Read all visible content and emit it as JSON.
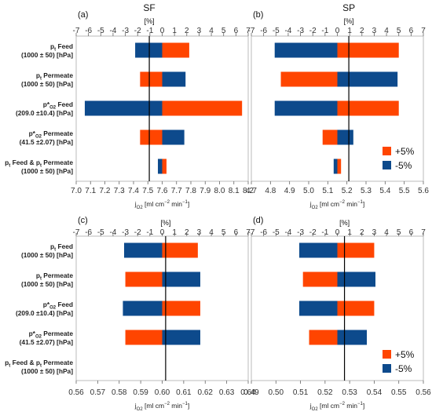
{
  "figure": {
    "legend": [
      {
        "label": "+5%",
        "color": "#ff4500"
      },
      {
        "label": "-5%",
        "color": "#0d4a8c"
      }
    ]
  },
  "chart_data": [
    {
      "type": "bar",
      "orientation": "horizontal",
      "panel_label": "(a)",
      "title": "SF",
      "top_axis": {
        "label": "[%]",
        "range": [
          -7,
          7
        ],
        "ticks": [
          -7,
          -6,
          -5,
          -4,
          -3,
          -2,
          -1,
          0,
          1,
          2,
          3,
          4,
          5,
          6,
          7
        ]
      },
      "bottom_axis": {
        "label": "j_O2 [ml cm^-2 min^-1]",
        "range": [
          7.0,
          8.2
        ],
        "ticks": [
          "7.0",
          "7.1",
          "7.2",
          "7.3",
          "7.4",
          "7.5",
          "7.6",
          "7.7",
          "7.8",
          "7.9",
          "8.0",
          "8.1",
          "8.2"
        ]
      },
      "baseline": 7.51,
      "categories": [
        "pt Feed (1000 ± 50) [hPa]",
        "pt Permeate (1000 ± 50) [hPa]",
        "p*O2 Feed (209.0 ±10.4) [hPa]",
        "p*O2 Permeate (41.5 ±2.07) [hPa]",
        "pt Feed & pt Permeate (1000 ± 50) [hPa]"
      ],
      "series": [
        {
          "name": "+5%",
          "values": [
            2.2,
            -1.8,
            6.5,
            -1.8,
            0.35
          ]
        },
        {
          "name": "-5%",
          "values": [
            -2.2,
            1.9,
            -6.3,
            1.8,
            -0.35
          ]
        }
      ]
    },
    {
      "type": "bar",
      "orientation": "horizontal",
      "panel_label": "(b)",
      "title": "SP",
      "top_axis": {
        "label": "[%]",
        "range": [
          -7,
          7
        ],
        "ticks": [
          -7,
          -6,
          -5,
          -4,
          -3,
          -2,
          -1,
          0,
          1,
          2,
          3,
          4,
          5,
          6,
          7
        ]
      },
      "bottom_axis": {
        "label": "j_O2 [ml cm^-2 min^-1]",
        "range": [
          4.7,
          5.6
        ],
        "ticks": [
          "4.7",
          "4.8",
          "4.9",
          "5.0",
          "5.1",
          "5.2",
          "5.3",
          "5.4",
          "5.5",
          "5.6"
        ]
      },
      "baseline": 5.21,
      "categories": [
        "pt Feed (1000 ± 50) [hPa]",
        "pt Permeate (1000 ± 50) [hPa]",
        "p*O2 Feed (209.0 ±10.4) [hPa]",
        "p*O2 Permeate (41.5 ±2.07) [hPa]",
        "pt Feed & pt Permeate (1000 ± 50) [hPa]"
      ],
      "series": [
        {
          "name": "+5%",
          "values": [
            5.0,
            -4.6,
            5.0,
            -1.2,
            0.3
          ]
        },
        {
          "name": "-5%",
          "values": [
            -5.1,
            4.9,
            -5.1,
            1.3,
            -0.3
          ]
        }
      ]
    },
    {
      "type": "bar",
      "orientation": "horizontal",
      "panel_label": "(c)",
      "top_axis": {
        "label": "[%]",
        "range": [
          -7,
          7
        ],
        "ticks": [
          -7,
          -6,
          -5,
          -4,
          -3,
          -2,
          -1,
          0,
          1,
          2,
          3,
          4,
          5,
          6,
          7
        ]
      },
      "bottom_axis": {
        "label": "j_O2 [ml cm^-2 min^-1]",
        "range": [
          0.56,
          0.64
        ],
        "ticks": [
          "0.56",
          "0.57",
          "0.58",
          "0.59",
          "0.60",
          "0.61",
          "0.62",
          "0.63",
          "0.64"
        ]
      },
      "baseline": 0.6016,
      "categories": [
        "pt Feed (1000 ± 50) [hPa]",
        "pt Permeate (1000 ± 50) [hPa]",
        "p*O2 Feed (209.0 ±10.4) [hPa]",
        "p*O2 Permeate (41.5 ±2.07) [hPa]",
        "pt Feed & pt Permeate (1000 ± 50) [hPa]"
      ],
      "series": [
        {
          "name": "+5%",
          "values": [
            2.9,
            -3.0,
            3.1,
            -3.0,
            0.0
          ]
        },
        {
          "name": "-5%",
          "values": [
            -3.1,
            3.1,
            -3.2,
            3.1,
            0.0
          ]
        }
      ]
    },
    {
      "type": "bar",
      "orientation": "horizontal",
      "panel_label": "(d)",
      "top_axis": {
        "label": "[%]",
        "range": [
          -7,
          7
        ],
        "ticks": [
          -7,
          -6,
          -5,
          -4,
          -3,
          -2,
          -1,
          0,
          1,
          2,
          3,
          4,
          5,
          6,
          7
        ]
      },
      "bottom_axis": {
        "label": "j_O2 [ml cm^-2 min^-1]",
        "range": [
          0.49,
          0.56
        ],
        "ticks": [
          "0.49",
          "0.50",
          "0.51",
          "0.52",
          "0.53",
          "0.54",
          "0.55",
          "0.56"
        ]
      },
      "baseline": 0.5279,
      "categories": [
        "pt Feed (1000 ± 50) [hPa]",
        "pt Permeate (1000 ± 50) [hPa]",
        "p*O2 Feed (209.0 ±10.4) [hPa]",
        "p*O2 Permeate (41.5 ±2.07) [hPa]",
        "pt Feed & pt Permeate (1000 ± 50) [hPa]"
      ],
      "series": [
        {
          "name": "+5%",
          "values": [
            3.0,
            -2.8,
            3.0,
            -2.3,
            0.0
          ]
        },
        {
          "name": "-5%",
          "values": [
            -3.1,
            3.1,
            -3.1,
            2.4,
            0.0
          ]
        }
      ]
    }
  ]
}
